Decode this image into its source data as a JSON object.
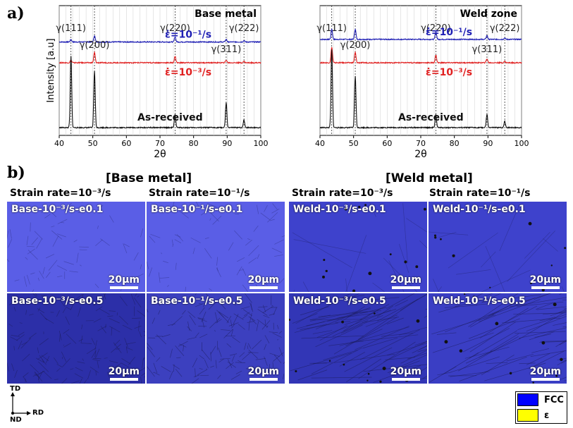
{
  "panel_a_label": "a)",
  "panel_b_label": "b)",
  "chart_data": [
    {
      "type": "line",
      "title": "Base metal",
      "xlabel": "2θ",
      "ylabel": "Intensity [a.u]",
      "xlim": [
        40,
        100
      ],
      "xticks": [
        "40",
        "50",
        "60",
        "70",
        "80",
        "90",
        "100"
      ],
      "peak_labels": [
        {
          "text": "γ(111)",
          "x": 43.5
        },
        {
          "text": "γ(200)",
          "x": 50.5
        },
        {
          "text": "γ(220)",
          "x": 74.5
        },
        {
          "text": "γ(311)",
          "x": 89.7
        },
        {
          "text": "γ(222)",
          "x": 95.0
        }
      ],
      "series": [
        {
          "name": "ε̇=10⁻¹/s",
          "color": "#1f1fb4",
          "baseline": 0.72,
          "peaks": [
            [
              43.5,
              0.02
            ],
            [
              50.5,
              0.05
            ],
            [
              74.5,
              0.04
            ],
            [
              89.7,
              0.02
            ],
            [
              95.0,
              0.01
            ]
          ]
        },
        {
          "name": "ε̇=10⁻³/s",
          "color": "#e02020",
          "baseline": 0.56,
          "peaks": [
            [
              43.5,
              0.02
            ],
            [
              50.5,
              0.08
            ],
            [
              74.5,
              0.05
            ],
            [
              89.7,
              0.02
            ],
            [
              95.0,
              0.01
            ]
          ]
        },
        {
          "name": "As-received",
          "color": "#111111",
          "baseline": 0.06,
          "peaks": [
            [
              43.5,
              0.55
            ],
            [
              50.5,
              0.44
            ],
            [
              74.5,
              0.1
            ],
            [
              89.7,
              0.19
            ],
            [
              95.0,
              0.06
            ]
          ]
        }
      ]
    },
    {
      "type": "line",
      "title": "Weld zone",
      "xlabel": "2θ",
      "ylabel": "",
      "xlim": [
        40,
        100
      ],
      "xticks": [
        "40",
        "50",
        "60",
        "70",
        "80",
        "90",
        "100"
      ],
      "peak_labels": [
        {
          "text": "γ(111)",
          "x": 43.5
        },
        {
          "text": "γ(200)",
          "x": 50.5
        },
        {
          "text": "γ(220)",
          "x": 74.5
        },
        {
          "text": "γ(311)",
          "x": 89.7
        },
        {
          "text": "γ(222)",
          "x": 95.0
        }
      ],
      "series": [
        {
          "name": "ε̇=10⁻¹/s",
          "color": "#1f1fb4",
          "baseline": 0.74,
          "peaks": [
            [
              43.5,
              0.08
            ],
            [
              50.5,
              0.08
            ],
            [
              74.5,
              0.06
            ],
            [
              89.7,
              0.03
            ],
            [
              95.0,
              0.01
            ]
          ]
        },
        {
          "name": "ε̇=10⁻³/s",
          "color": "#e02020",
          "baseline": 0.56,
          "peaks": [
            [
              43.5,
              0.12
            ],
            [
              50.5,
              0.08
            ],
            [
              74.5,
              0.06
            ],
            [
              89.7,
              0.03
            ],
            [
              95.0,
              0.01
            ]
          ]
        },
        {
          "name": "As-received",
          "color": "#111111",
          "baseline": 0.06,
          "peaks": [
            [
              43.5,
              0.6
            ],
            [
              50.5,
              0.4
            ],
            [
              74.5,
              0.1
            ],
            [
              89.7,
              0.1
            ],
            [
              95.0,
              0.05
            ]
          ]
        }
      ]
    }
  ],
  "micro": {
    "base_title": "[Base metal]",
    "weld_title": "[Weld metal]",
    "rate_low": "Strain rate=10⁻³/s",
    "rate_high": "Strain rate=10⁻¹/s",
    "scale_label": "20μm",
    "tiles": [
      {
        "label": "Base-10⁻³/s-e0.1",
        "tone": "#5a5ee6",
        "density": "low"
      },
      {
        "label": "Base-10⁻¹/s-e0.1",
        "tone": "#5a5ee6",
        "density": "low"
      },
      {
        "label": "Weld-10⁻³/s-e0.1",
        "tone": "#3e42cc",
        "density": "weld"
      },
      {
        "label": "Weld-10⁻¹/s-e0.1",
        "tone": "#3e42cc",
        "density": "weld"
      },
      {
        "label": "Base-10⁻³/s-e0.5",
        "tone": "#2c2fa8",
        "density": "high"
      },
      {
        "label": "Base-10⁻¹/s-e0.5",
        "tone": "#3c40bf",
        "density": "high"
      },
      {
        "label": "Weld-10⁻³/s-e0.5",
        "tone": "#3236b6",
        "density": "weldhigh"
      },
      {
        "label": "Weld-10⁻¹/s-e0.5",
        "tone": "#3a3ec4",
        "density": "weldhigh"
      }
    ]
  },
  "axes_icon": {
    "td": "TD",
    "rd": "RD",
    "nd": "ND"
  },
  "legend": [
    {
      "label": "FCC",
      "color": "#0000ff"
    },
    {
      "label": "ε",
      "color": "#ffff00"
    }
  ]
}
